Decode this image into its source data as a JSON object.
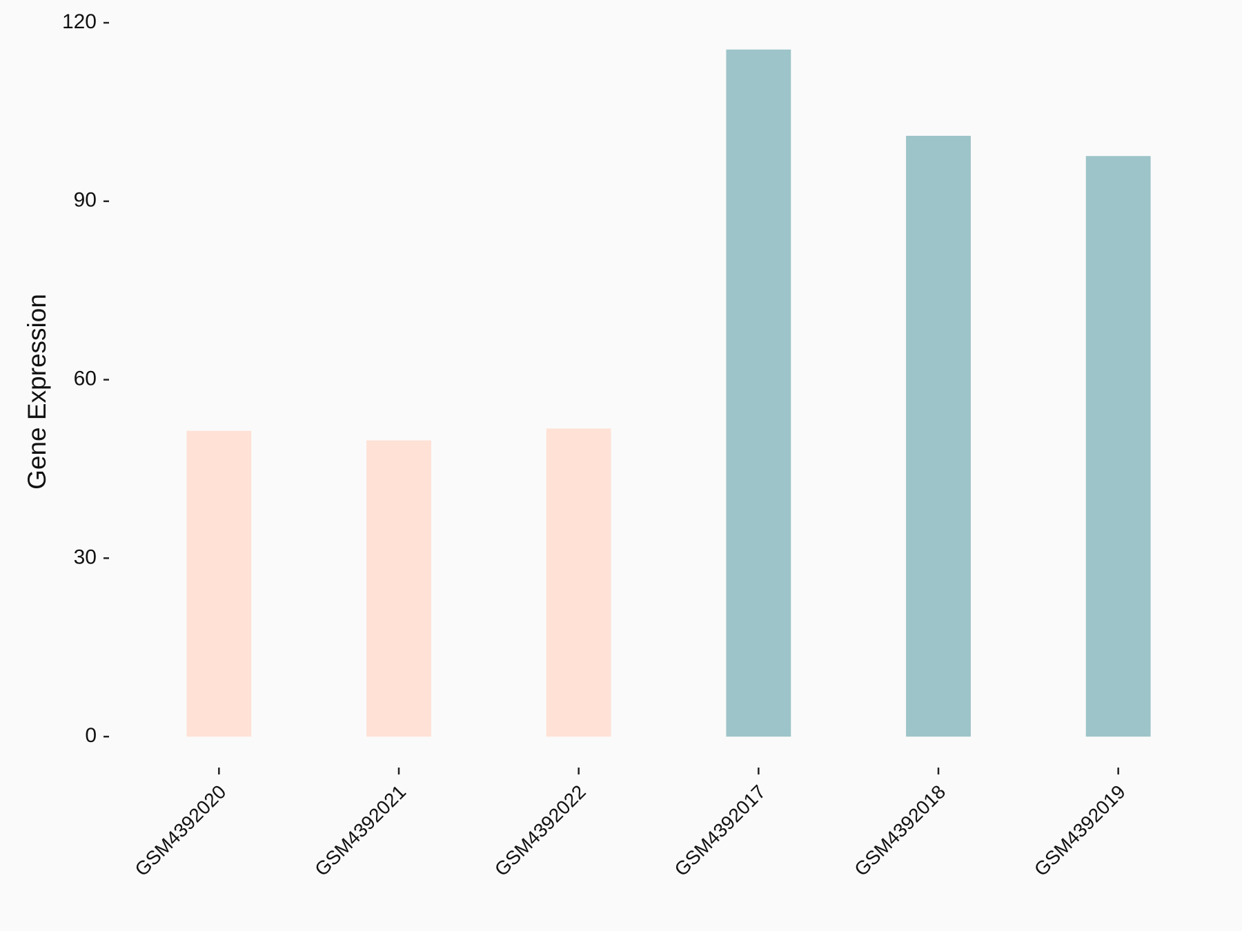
{
  "chart_data": {
    "type": "bar",
    "y_label": "Gene Expression",
    "categories": [
      "GSM4392020",
      "GSM4392021",
      "GSM4392022",
      "GSM4392017",
      "GSM4392018",
      "GSM4392019"
    ],
    "values": [
      51.4,
      49.8,
      51.8,
      115.5,
      101.0,
      97.6
    ],
    "colors": [
      "#ffe1d6",
      "#ffe1d6",
      "#ffe1d6",
      "#9dc4c8",
      "#9dc4c8",
      "#9dc4c8"
    ],
    "ylim": [
      -5.78,
      121.28
    ],
    "yticks": [
      0,
      30,
      60,
      90,
      120
    ]
  }
}
